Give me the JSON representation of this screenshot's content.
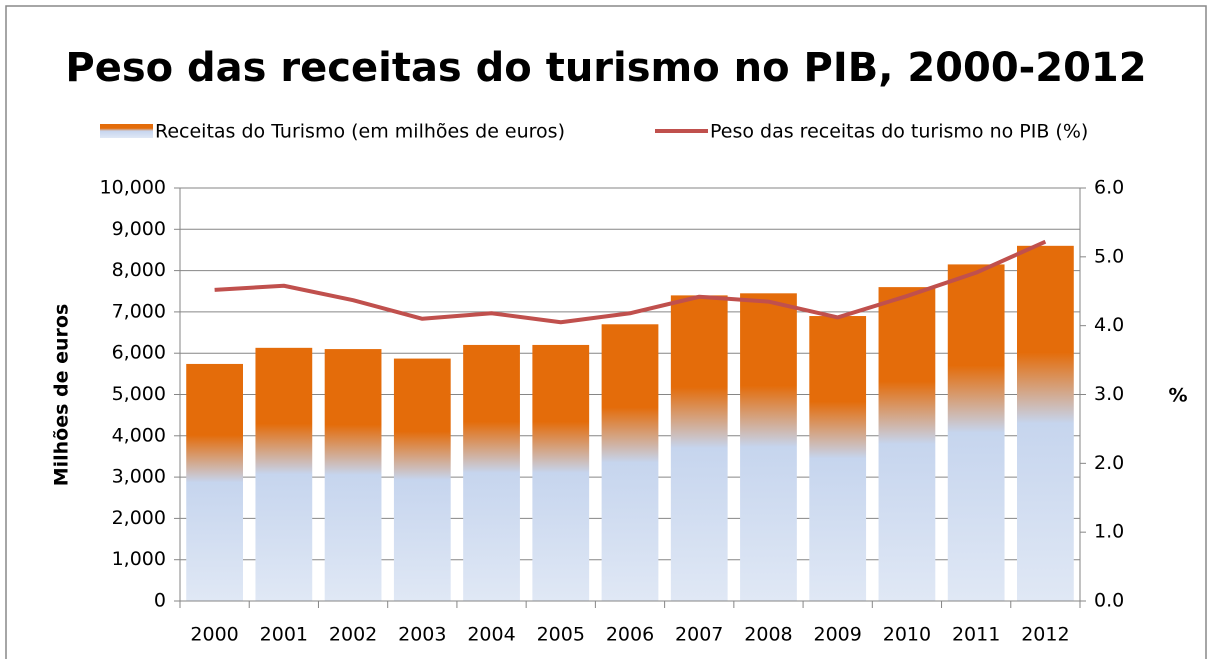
{
  "chart_data": {
    "type": "bar",
    "title": "Peso das receitas do turismo no PIB, 2000-2012",
    "y_label": "Milhões de euros",
    "y2_label": "%",
    "categories": [
      "2000",
      "2001",
      "2002",
      "2003",
      "2004",
      "2005",
      "2006",
      "2007",
      "2008",
      "2009",
      "2010",
      "2011",
      "2012"
    ],
    "series": [
      {
        "name": "Receitas do Turismo (em milhões de euros)",
        "type": "bar",
        "color": "#e46c0a",
        "values": [
          5740,
          6130,
          6100,
          5870,
          6200,
          6200,
          6700,
          7400,
          7450,
          6900,
          7600,
          8150,
          8600
        ]
      },
      {
        "name": "Peso das receitas do turismo no PIB (%)",
        "type": "line",
        "color": "#c0504d",
        "axis": "y2",
        "values": [
          4.52,
          4.58,
          4.37,
          4.1,
          4.18,
          4.05,
          4.18,
          4.42,
          4.35,
          4.12,
          4.43,
          4.77,
          5.22
        ]
      }
    ],
    "ylim": [
      0,
      10000
    ],
    "yticks": [
      0,
      {
        "value": 1000,
        "label": "1,000"
      },
      {
        "value": 2000,
        "label": "2,000"
      },
      {
        "value": 3000,
        "label": "3,000"
      },
      {
        "value": 4000,
        "label": "4,000"
      },
      {
        "value": 5000,
        "label": "5,000"
      },
      {
        "value": 6000,
        "label": "6,000"
      },
      {
        "value": 7000,
        "label": "7,000"
      },
      {
        "value": 8000,
        "label": "8,000"
      },
      {
        "value": 9000,
        "label": "9,000"
      },
      {
        "value": 10000,
        "label": "10,000"
      }
    ],
    "y2lim": [
      0,
      6
    ],
    "y2ticks": [
      {
        "value": 0,
        "label": "0.0"
      },
      {
        "value": 1,
        "label": "1.0"
      },
      {
        "value": 2,
        "label": "2.0"
      },
      {
        "value": 3,
        "label": "3.0"
      },
      {
        "value": 4,
        "label": "4.0"
      },
      {
        "value": 5,
        "label": "5.0"
      },
      {
        "value": 6,
        "label": "6.0"
      }
    ],
    "grid": true,
    "legend": "top"
  }
}
